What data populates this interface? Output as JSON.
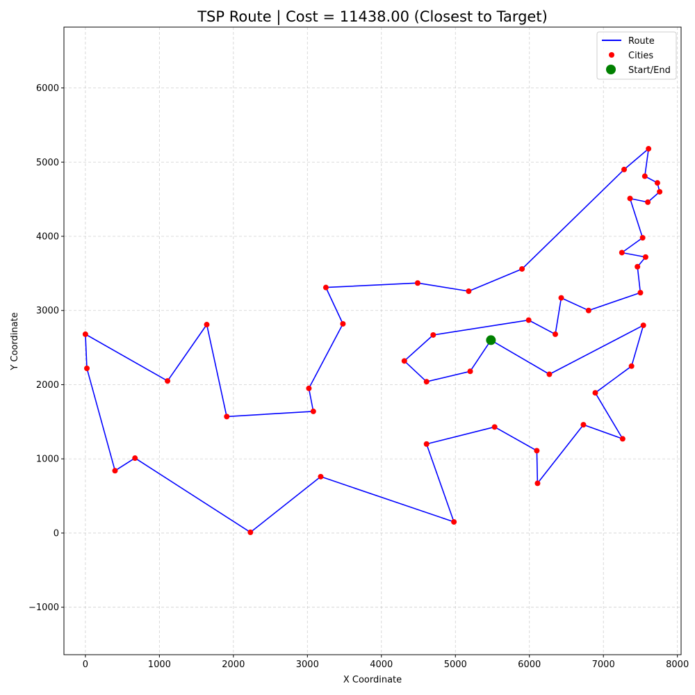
{
  "chart_data": {
    "type": "line",
    "title": "TSP Route | Cost = 11438.00 (Closest to Target)",
    "xlabel": "X Coordinate",
    "ylabel": "Y Coordinate",
    "xlim": [
      -290,
      8050
    ],
    "ylim": [
      -1640,
      6820
    ],
    "xticks": [
      0,
      1000,
      2000,
      3000,
      4000,
      5000,
      6000,
      7000,
      8000
    ],
    "yticks": [
      -1000,
      0,
      1000,
      2000,
      3000,
      4000,
      5000,
      6000
    ],
    "grid": true,
    "legend_position": "top-right",
    "legend": [
      "Route",
      "Cities",
      "Start/End"
    ],
    "colors": {
      "route": "#0000ff",
      "cities": "#ff0000",
      "start": "#008000",
      "grid": "#b0b0b0"
    },
    "route": [
      [
        5480,
        2600
      ],
      [
        5200,
        2180
      ],
      [
        4610,
        2040
      ],
      [
        4310,
        2320
      ],
      [
        4700,
        2670
      ],
      [
        5990,
        2870
      ],
      [
        6350,
        2680
      ],
      [
        6430,
        3170
      ],
      [
        6800,
        3000
      ],
      [
        7500,
        3240
      ],
      [
        7460,
        3590
      ],
      [
        7570,
        3720
      ],
      [
        7250,
        3780
      ],
      [
        7530,
        3980
      ],
      [
        7360,
        4510
      ],
      [
        7600,
        4460
      ],
      [
        7760,
        4600
      ],
      [
        7730,
        4720
      ],
      [
        7560,
        4810
      ],
      [
        7610,
        5180
      ],
      [
        7280,
        4900
      ],
      [
        5900,
        3560
      ],
      [
        5180,
        3260
      ],
      [
        4490,
        3370
      ],
      [
        3250,
        3310
      ],
      [
        3480,
        2820
      ],
      [
        3020,
        1950
      ],
      [
        3080,
        1640
      ],
      [
        1910,
        1570
      ],
      [
        1640,
        2810
      ],
      [
        1110,
        2050
      ],
      [
        0,
        2680
      ],
      [
        20,
        2220
      ],
      [
        400,
        840
      ],
      [
        670,
        1010
      ],
      [
        2230,
        10
      ],
      [
        3180,
        760
      ],
      [
        4980,
        150
      ],
      [
        4610,
        1200
      ],
      [
        5530,
        1430
      ],
      [
        6100,
        1110
      ],
      [
        6110,
        670
      ],
      [
        6730,
        1460
      ],
      [
        7260,
        1270
      ],
      [
        6890,
        1890
      ],
      [
        7380,
        2250
      ],
      [
        7540,
        2800
      ],
      [
        6270,
        2140
      ],
      [
        5480,
        2600
      ]
    ],
    "start": [
      5480,
      2600
    ]
  }
}
